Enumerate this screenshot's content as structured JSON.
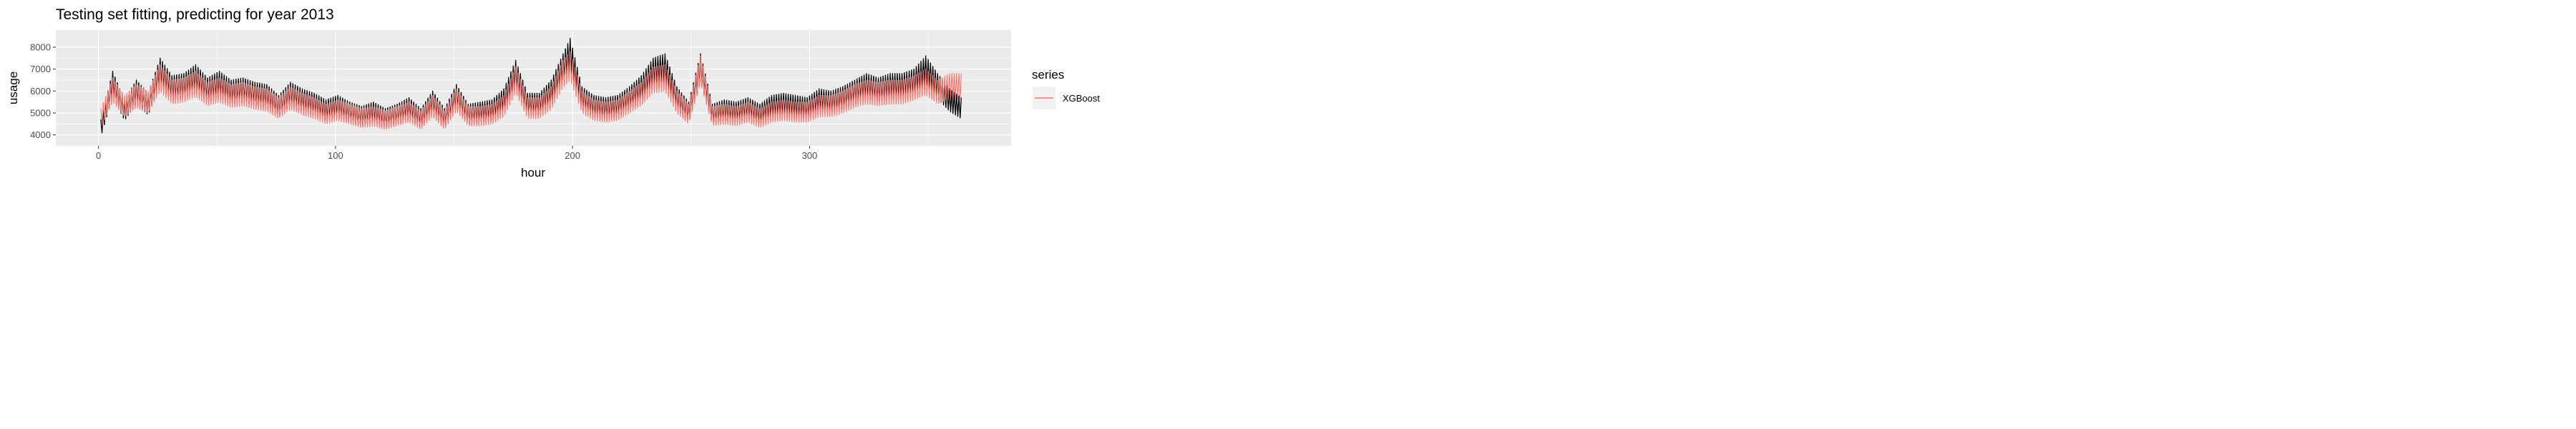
{
  "chart_data": {
    "type": "line",
    "title": "Testing set fitting, predicting for year 2013",
    "xlabel": "hour",
    "ylabel": "usage",
    "xlim": [
      -18,
      385
    ],
    "ylim": [
      3500,
      8780
    ],
    "x_ticks": [
      0,
      100,
      200,
      300
    ],
    "y_ticks": [
      4000,
      5000,
      6000,
      7000,
      8000
    ],
    "grid": true,
    "legend": {
      "title": "series",
      "position": "right",
      "entries": [
        "XGBoost"
      ]
    },
    "series": [
      {
        "color": "#000000",
        "x": [
          1,
          6,
          11,
          16,
          21,
          26,
          31,
          36,
          41,
          46,
          51,
          56,
          61,
          66,
          71,
          76,
          81,
          86,
          91,
          96,
          101,
          106,
          111,
          116,
          121,
          126,
          131,
          136,
          141,
          146,
          151,
          156,
          161,
          166,
          171,
          176,
          181,
          186,
          191,
          196,
          199,
          204,
          209,
          214,
          219,
          224,
          229,
          234,
          239,
          244,
          249,
          254,
          259,
          264,
          269,
          274,
          279,
          284,
          289,
          294,
          299,
          304,
          309,
          314,
          319,
          324,
          329,
          334,
          339,
          344,
          349,
          354,
          359,
          364
        ],
        "y": [
          4700,
          6900,
          5600,
          6500,
          5900,
          7500,
          6700,
          6800,
          7200,
          6600,
          6900,
          6500,
          6600,
          6400,
          6300,
          5800,
          6400,
          6100,
          5900,
          5600,
          5800,
          5500,
          5300,
          5500,
          5200,
          5400,
          5700,
          5200,
          6000,
          5200,
          6300,
          5400,
          5500,
          5600,
          6100,
          7400,
          5900,
          5900,
          6500,
          7700,
          8400,
          6200,
          5800,
          5700,
          5800,
          6200,
          6700,
          7500,
          7700,
          6200,
          5500,
          7700,
          5400,
          5600,
          5500,
          5700,
          5400,
          5800,
          5900,
          5800,
          5700,
          6100,
          6000,
          6200,
          6500,
          6800,
          6600,
          6800,
          6800,
          7000,
          7600,
          6800,
          6100,
          5700
        ]
      },
      {
        "name": "XGBoost",
        "color": "#F8766D",
        "x": [
          1,
          6,
          11,
          16,
          21,
          26,
          31,
          36,
          41,
          46,
          51,
          56,
          61,
          66,
          71,
          76,
          81,
          86,
          91,
          96,
          101,
          106,
          111,
          116,
          121,
          126,
          131,
          136,
          141,
          146,
          151,
          156,
          161,
          166,
          171,
          176,
          181,
          186,
          191,
          196,
          199,
          204,
          209,
          214,
          219,
          224,
          229,
          234,
          239,
          244,
          249,
          254,
          259,
          264,
          269,
          274,
          279,
          284,
          289,
          294,
          299,
          304,
          309,
          314,
          319,
          324,
          329,
          334,
          339,
          344,
          349,
          354,
          359,
          364
        ],
        "y": [
          5200,
          6600,
          5800,
          6300,
          6000,
          7200,
          6500,
          6600,
          6900,
          6400,
          6600,
          6300,
          6400,
          6200,
          6100,
          5700,
          6200,
          5900,
          5700,
          5400,
          5600,
          5400,
          5200,
          5300,
          5100,
          5300,
          5500,
          5100,
          5800,
          5100,
          6100,
          5300,
          5300,
          5400,
          5800,
          7100,
          5700,
          5700,
          6200,
          7400,
          7800,
          6000,
          5600,
          5500,
          5600,
          6000,
          6400,
          7100,
          7200,
          6000,
          5400,
          7600,
          5300,
          5400,
          5300,
          5500,
          5200,
          5500,
          5600,
          5500,
          5500,
          5800,
          5800,
          6000,
          6300,
          6500,
          6400,
          6500,
          6500,
          6700,
          7000,
          6500,
          6800,
          6800
        ]
      }
    ]
  }
}
